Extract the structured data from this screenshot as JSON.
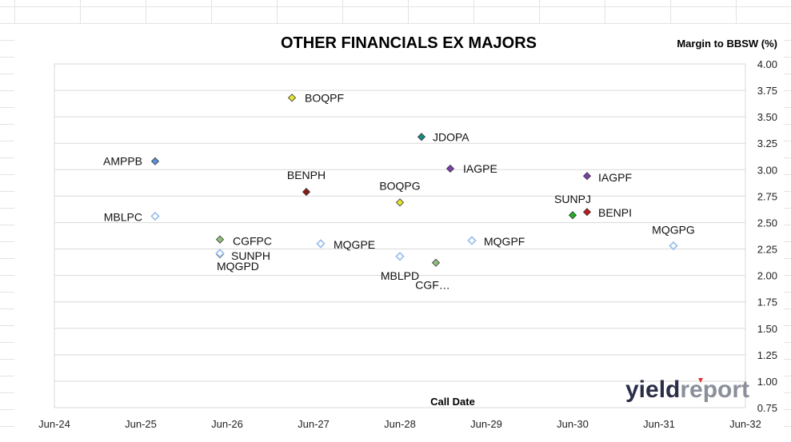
{
  "chart_data": {
    "type": "scatter",
    "title": "OTHER FINANCIALS EX MAJORS",
    "ylabel": "Margin to BBSW (%)",
    "xlabel": "Call Date",
    "x_ticks": [
      "Jun-24",
      "Jun-25",
      "Jun-26",
      "Jun-27",
      "Jun-28",
      "Jun-29",
      "Jun-30",
      "Jun-31",
      "Jun-32"
    ],
    "y_ticks": [
      "4.00",
      "3.75",
      "3.50",
      "3.25",
      "3.00",
      "2.75",
      "2.50",
      "2.25",
      "2.00",
      "1.75",
      "1.50",
      "1.25",
      "1.00",
      "0.75"
    ],
    "xlim": [
      "2024-06",
      "2032-06"
    ],
    "ylim": [
      0.75,
      4.0
    ],
    "y_axis_side": "right",
    "grid": "horizontal",
    "points": [
      {
        "label": "BOQPF",
        "x": "2027-03",
        "y": 3.68,
        "color": "#e6e62e",
        "style": "filled"
      },
      {
        "label": "JDOPA",
        "x": "2028-09",
        "y": 3.31,
        "color": "#1a8a80",
        "style": "filled"
      },
      {
        "label": "AMPPB",
        "x": "2025-08",
        "y": 3.08,
        "color": "#5b8fd4",
        "style": "filled"
      },
      {
        "label": "IAGPE",
        "x": "2029-01",
        "y": 3.01,
        "color": "#7b3fa8",
        "style": "filled"
      },
      {
        "label": "IAGPF",
        "x": "2030-08",
        "y": 2.94,
        "color": "#7b3fa8",
        "style": "filled"
      },
      {
        "label": "BENPH",
        "x": "2027-05",
        "y": 2.79,
        "color": "#8b1a1a",
        "style": "filled"
      },
      {
        "label": "BOQPG",
        "x": "2028-06",
        "y": 2.69,
        "color": "#e6e62e",
        "style": "filled"
      },
      {
        "label": "SUNPJ",
        "x": "2030-06",
        "y": 2.57,
        "color": "#22b022",
        "style": "filled"
      },
      {
        "label": "BENPI",
        "x": "2030-08",
        "y": 2.6,
        "color": "#c01a1a",
        "style": "filled"
      },
      {
        "label": "MBLPC",
        "x": "2025-08",
        "y": 2.56,
        "color": "#9ec1ec",
        "style": "hollow"
      },
      {
        "label": "CGFPC",
        "x": "2026-05",
        "y": 2.34,
        "color": "#8fc07a",
        "style": "filled"
      },
      {
        "label": "MQGPE",
        "x": "2027-07",
        "y": 2.3,
        "color": "#9ec1ec",
        "style": "hollow"
      },
      {
        "label": "MQGPF",
        "x": "2029-04",
        "y": 2.33,
        "color": "#9ec1ec",
        "style": "hollow"
      },
      {
        "label": "MQGPG",
        "x": "2031-08",
        "y": 2.28,
        "color": "#9ec1ec",
        "style": "hollow"
      },
      {
        "label": "SUNPH",
        "x": "2026-05",
        "y": 2.2,
        "color": "#5a9a3a",
        "style": "filled"
      },
      {
        "label": "MQGPD",
        "x": "2026-05",
        "y": 2.21,
        "color": "#9ec1ec",
        "style": "hollow"
      },
      {
        "label": "MBLPD",
        "x": "2028-06",
        "y": 2.18,
        "color": "#9ec1ec",
        "style": "hollow"
      },
      {
        "label": "CGF…",
        "x": "2028-11",
        "y": 2.12,
        "color": "#8fc07a",
        "style": "filled"
      }
    ]
  },
  "logo": {
    "part1": "yield",
    "part2": "report",
    "name": "yieldreport-logo"
  }
}
